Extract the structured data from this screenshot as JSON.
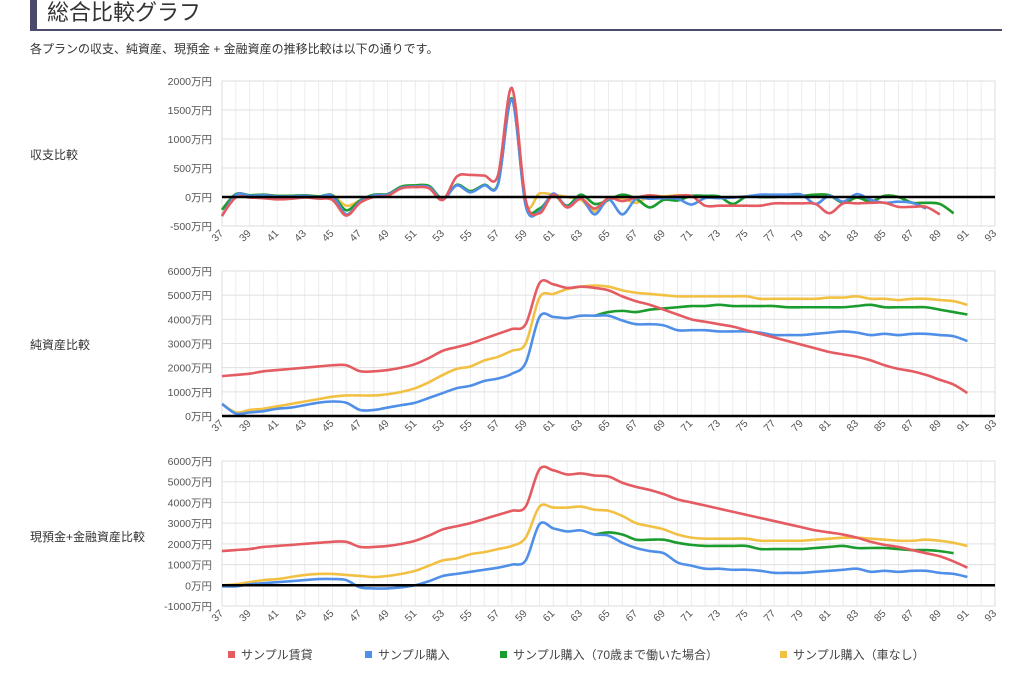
{
  "page": {
    "title": "総合比較グラフ",
    "subtitle": "各プランの収支、純資産、現預金 + 金融資産の推移比較は以下の通りです。"
  },
  "legend": [
    {
      "name": "サンプル賃貸",
      "color": "#e45b62"
    },
    {
      "name": "サンプル購入",
      "color": "#4f8fe8"
    },
    {
      "name": "サンプル購入（70歳まで働いた場合）",
      "color": "#1a9c2f"
    },
    {
      "name": "サンプル購入（車なし）",
      "color": "#f2c043"
    }
  ],
  "chart_data": [
    {
      "type": "line",
      "label": "収支比較",
      "title": "",
      "xlabel": "",
      "ylabel": "",
      "x_range": [
        37,
        93
      ],
      "x_ticks": [
        "37",
        "39",
        "41",
        "43",
        "45",
        "47",
        "49",
        "51",
        "53",
        "55",
        "57",
        "59",
        "61",
        "63",
        "65",
        "67",
        "69",
        "71",
        "73",
        "75",
        "77",
        "79",
        "81",
        "83",
        "85",
        "87",
        "89",
        "91",
        "93"
      ],
      "ylim": [
        -500,
        2000
      ],
      "y_ticks": [
        -500,
        0,
        500,
        1000,
        1500,
        2000
      ],
      "y_tick_labels": [
        "-500万円",
        "0万円",
        "500万円",
        "1000万円",
        "1500万円",
        "2000万円"
      ],
      "series": [
        {
          "name": "サンプル購入（車なし）",
          "color": "#f2c043",
          "start": 37,
          "values": [
            -220,
            50,
            30,
            40,
            20,
            20,
            30,
            10,
            30,
            -150,
            -60,
            40,
            50,
            180,
            200,
            190,
            -30,
            210,
            100,
            210,
            230,
            1700,
            -100,
            60,
            40,
            0,
            -50,
            -250,
            -50,
            -20,
            -100,
            20,
            10,
            30,
            20,
            10,
            0,
            -10,
            10,
            0,
            0,
            20,
            20,
            40,
            30,
            -100,
            -10,
            -80,
            20,
            0,
            -100,
            -100,
            -120,
            -280
          ]
        },
        {
          "name": "サンプル購入（70歳まで働いた場合）",
          "color": "#1a9c2f",
          "start": 37,
          "values": [
            -220,
            50,
            30,
            40,
            20,
            20,
            30,
            10,
            30,
            -230,
            -60,
            40,
            50,
            180,
            200,
            190,
            -30,
            210,
            100,
            210,
            230,
            1700,
            -100,
            -200,
            30,
            -150,
            40,
            -120,
            -50,
            40,
            -30,
            -180,
            -50,
            -60,
            20,
            20,
            10,
            -120,
            10,
            0,
            0,
            20,
            20,
            40,
            30,
            -100,
            -10,
            -80,
            20,
            0,
            -100,
            -100,
            -120,
            -280
          ]
        },
        {
          "name": "サンプル購入",
          "color": "#4f8fe8",
          "start": 37,
          "values": [
            -330,
            40,
            20,
            30,
            10,
            10,
            20,
            0,
            20,
            -300,
            -80,
            30,
            40,
            160,
            180,
            170,
            -40,
            200,
            80,
            200,
            220,
            1680,
            -150,
            -250,
            60,
            -170,
            -20,
            -300,
            -40,
            -300,
            -30,
            -30,
            -20,
            -30,
            -130,
            -20,
            -20,
            -10,
            10,
            40,
            40,
            40,
            40,
            -120,
            20,
            -80,
            50,
            -50,
            -100,
            -80,
            -100,
            -200
          ]
        },
        {
          "name": "サンプル賃貸",
          "color": "#e45b62",
          "start": 37,
          "values": [
            -320,
            -10,
            -10,
            -20,
            -40,
            -30,
            -10,
            -30,
            -50,
            -320,
            -100,
            0,
            20,
            150,
            170,
            150,
            -50,
            350,
            380,
            370,
            380,
            1880,
            -50,
            -280,
            40,
            -180,
            -30,
            -200,
            -20,
            -70,
            -10,
            30,
            0,
            20,
            20,
            -150,
            -150,
            -150,
            -150,
            -150,
            -110,
            -110,
            -110,
            -120,
            -280,
            -110,
            -110,
            -100,
            -100,
            -170,
            -170,
            -170,
            -300
          ]
        }
      ]
    },
    {
      "type": "line",
      "label": "純資産比較",
      "title": "",
      "xlabel": "",
      "ylabel": "",
      "x_range": [
        37,
        93
      ],
      "x_ticks": [
        "37",
        "39",
        "41",
        "43",
        "45",
        "47",
        "49",
        "51",
        "53",
        "55",
        "57",
        "59",
        "61",
        "63",
        "65",
        "67",
        "69",
        "71",
        "73",
        "75",
        "77",
        "79",
        "81",
        "83",
        "85",
        "87",
        "89",
        "91",
        "93"
      ],
      "ylim": [
        0,
        6000
      ],
      "y_ticks": [
        0,
        1000,
        2000,
        3000,
        4000,
        5000,
        6000
      ],
      "y_tick_labels": [
        "0万円",
        "1000万円",
        "2000万円",
        "3000万円",
        "4000万円",
        "5000万円",
        "6000万円"
      ],
      "series": [
        {
          "name": "サンプル購入（車なし）",
          "color": "#f2c043",
          "start": 37,
          "values": [
            500,
            150,
            250,
            300,
            400,
            500,
            600,
            700,
            800,
            850,
            850,
            850,
            900,
            1000,
            1150,
            1400,
            1700,
            1950,
            2050,
            2300,
            2450,
            2700,
            3000,
            4900,
            5050,
            5250,
            5350,
            5400,
            5350,
            5200,
            5100,
            5050,
            5000,
            4950,
            4950,
            4950,
            4950,
            4950,
            4950,
            4850,
            4850,
            4850,
            4850,
            4850,
            4900,
            4900,
            4950,
            4850,
            4850,
            4800,
            4850,
            4850,
            4800,
            4750,
            4600
          ]
        },
        {
          "name": "サンプル購入（70歳まで働いた場合）",
          "color": "#1a9c2f",
          "start": 64,
          "values": [
            4150,
            4300,
            4350,
            4300,
            4400,
            4450,
            4500,
            4550,
            4550,
            4600,
            4550,
            4550,
            4550,
            4550,
            4500,
            4500,
            4500,
            4500,
            4500,
            4550,
            4600,
            4500,
            4500,
            4500,
            4500,
            4400,
            4300,
            4200
          ]
        },
        {
          "name": "サンプル購入",
          "color": "#4f8fe8",
          "start": 37,
          "values": [
            500,
            100,
            150,
            200,
            300,
            350,
            450,
            550,
            600,
            550,
            250,
            250,
            350,
            450,
            550,
            750,
            950,
            1150,
            1250,
            1450,
            1550,
            1750,
            2200,
            4100,
            4100,
            4050,
            4150,
            4150,
            4150,
            3950,
            3800,
            3800,
            3750,
            3550,
            3550,
            3550,
            3500,
            3500,
            3500,
            3450,
            3350,
            3350,
            3350,
            3400,
            3450,
            3500,
            3450,
            3350,
            3400,
            3350,
            3400,
            3400,
            3350,
            3300,
            3100
          ]
        },
        {
          "name": "サンプル賃貸",
          "color": "#e45b62",
          "start": 37,
          "values": [
            1650,
            1700,
            1750,
            1850,
            1900,
            1950,
            2000,
            2050,
            2100,
            2100,
            1850,
            1850,
            1900,
            2000,
            2150,
            2400,
            2700,
            2850,
            3000,
            3200,
            3400,
            3600,
            3800,
            5500,
            5450,
            5300,
            5350,
            5300,
            5200,
            4950,
            4750,
            4600,
            4400,
            4200,
            4000,
            3900,
            3800,
            3700,
            3550,
            3400,
            3250,
            3100,
            2950,
            2800,
            2650,
            2550,
            2450,
            2300,
            2100,
            1950,
            1850,
            1700,
            1500,
            1300,
            950
          ]
        }
      ]
    },
    {
      "type": "line",
      "label": "現預金+金融資産比較",
      "title": "",
      "xlabel": "",
      "ylabel": "",
      "x_range": [
        37,
        93
      ],
      "x_ticks": [
        "37",
        "39",
        "41",
        "43",
        "45",
        "47",
        "49",
        "51",
        "53",
        "55",
        "57",
        "59",
        "61",
        "63",
        "65",
        "67",
        "69",
        "71",
        "73",
        "75",
        "77",
        "79",
        "81",
        "83",
        "85",
        "87",
        "89",
        "91",
        "93"
      ],
      "ylim": [
        -1000,
        6000
      ],
      "y_ticks": [
        -1000,
        0,
        1000,
        2000,
        3000,
        4000,
        5000,
        6000
      ],
      "y_tick_labels": [
        "-1000万円",
        "0万円",
        "1000万円",
        "2000万円",
        "3000万円",
        "4000万円",
        "5000万円",
        "6000万円"
      ],
      "series": [
        {
          "name": "サンプル購入（車なし）",
          "color": "#f2c043",
          "start": 37,
          "values": [
            0,
            50,
            150,
            250,
            300,
            400,
            500,
            550,
            550,
            500,
            450,
            400,
            450,
            550,
            700,
            950,
            1200,
            1300,
            1500,
            1600,
            1750,
            1900,
            2300,
            3800,
            3750,
            3750,
            3800,
            3650,
            3600,
            3350,
            3000,
            2850,
            2700,
            2450,
            2300,
            2250,
            2250,
            2250,
            2250,
            2150,
            2150,
            2150,
            2150,
            2200,
            2250,
            2300,
            2300,
            2250,
            2200,
            2150,
            2150,
            2200,
            2150,
            2050,
            1900
          ]
        },
        {
          "name": "サンプル購入（70歳まで働いた場合）",
          "color": "#1a9c2f",
          "start": 64,
          "values": [
            2450,
            2550,
            2450,
            2200,
            2200,
            2200,
            2050,
            1950,
            1900,
            1900,
            1900,
            1900,
            1750,
            1750,
            1750,
            1750,
            1800,
            1850,
            1900,
            1800,
            1800,
            1800,
            1750,
            1700,
            1700,
            1650,
            1550
          ]
        },
        {
          "name": "サンプル購入",
          "color": "#4f8fe8",
          "start": 37,
          "values": [
            -50,
            -50,
            50,
            100,
            150,
            200,
            250,
            300,
            300,
            250,
            -100,
            -150,
            -150,
            -100,
            0,
            200,
            450,
            550,
            650,
            750,
            850,
            1000,
            1200,
            2950,
            2750,
            2600,
            2650,
            2450,
            2400,
            2050,
            1800,
            1650,
            1550,
            1100,
            950,
            800,
            800,
            750,
            750,
            700,
            600,
            600,
            600,
            650,
            700,
            750,
            800,
            650,
            700,
            650,
            700,
            700,
            600,
            550,
            400
          ]
        },
        {
          "name": "サンプル賃貸",
          "color": "#e45b62",
          "start": 37,
          "values": [
            1650,
            1700,
            1750,
            1850,
            1900,
            1950,
            2000,
            2050,
            2100,
            2100,
            1850,
            1850,
            1900,
            2000,
            2150,
            2400,
            2700,
            2850,
            3000,
            3200,
            3400,
            3600,
            3800,
            5600,
            5550,
            5350,
            5400,
            5300,
            5250,
            4950,
            4750,
            4600,
            4400,
            4150,
            4000,
            3850,
            3700,
            3550,
            3400,
            3250,
            3100,
            2950,
            2800,
            2650,
            2550,
            2450,
            2300,
            2100,
            1950,
            1850,
            1700,
            1550,
            1400,
            1150,
            850
          ]
        }
      ]
    }
  ]
}
